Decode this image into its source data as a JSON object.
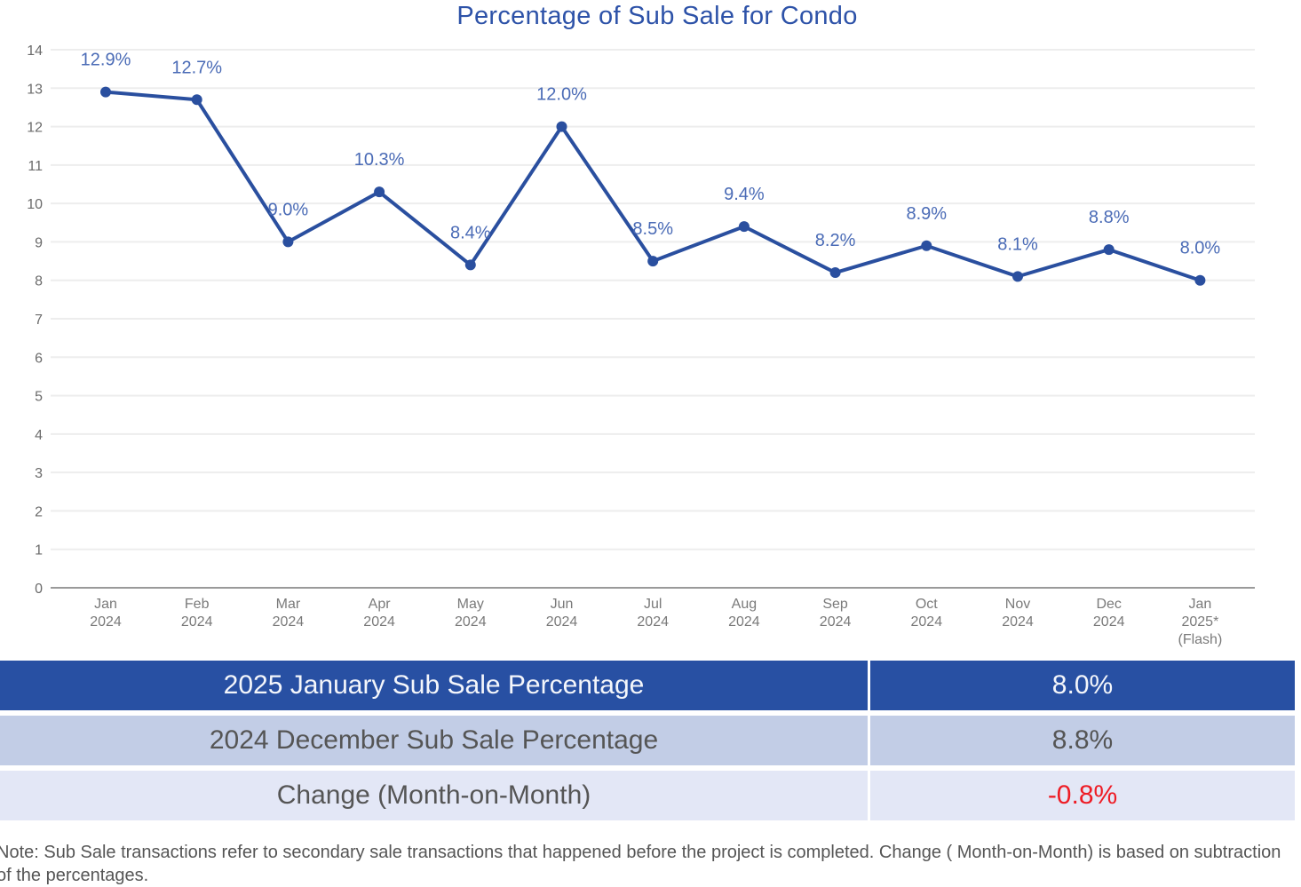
{
  "chart_data": {
    "type": "line",
    "title": "Percentage of Sub Sale for Condo",
    "xlabel": "",
    "ylabel": "",
    "ylim": [
      0,
      14
    ],
    "yticks": [
      0,
      1,
      2,
      3,
      4,
      5,
      6,
      7,
      8,
      9,
      10,
      11,
      12,
      13,
      14
    ],
    "grid": true,
    "legend": "none",
    "categories": [
      [
        "Jan",
        "2024"
      ],
      [
        "Feb",
        "2024"
      ],
      [
        "Mar",
        "2024"
      ],
      [
        "Apr",
        "2024"
      ],
      [
        "May",
        "2024"
      ],
      [
        "Jun",
        "2024"
      ],
      [
        "Jul",
        "2024"
      ],
      [
        "Aug",
        "2024"
      ],
      [
        "Sep",
        "2024"
      ],
      [
        "Oct",
        "2024"
      ],
      [
        "Nov",
        "2024"
      ],
      [
        "Dec",
        "2024"
      ],
      [
        "Jan",
        "2025*",
        "(Flash)"
      ]
    ],
    "series": [
      {
        "name": "Sub Sale Percentage",
        "color": "#2a4f9f",
        "values": [
          12.9,
          12.7,
          9.0,
          10.3,
          8.4,
          12.0,
          8.5,
          9.4,
          8.2,
          8.9,
          8.1,
          8.8,
          8.0
        ],
        "labels": [
          "12.9%",
          "12.7%",
          "9.0%",
          "10.3%",
          "8.4%",
          "12.0%",
          "8.5%",
          "9.4%",
          "8.2%",
          "8.9%",
          "8.1%",
          "8.8%",
          "8.0%"
        ]
      }
    ]
  },
  "summary": {
    "rows": [
      {
        "label": "2025 January Sub Sale Percentage",
        "value": "8.0%"
      },
      {
        "label": "2024 December Sub Sale Percentage",
        "value": "8.8%"
      },
      {
        "label": "Change (Month-on-Month)",
        "value": "-0.8%",
        "value_color": "#ee1c25"
      }
    ]
  },
  "note": "Note: Sub Sale transactions refer to secondary sale transactions that happened before the project is completed. Change ( Month-on-Month) is based on subtraction of the percentages."
}
